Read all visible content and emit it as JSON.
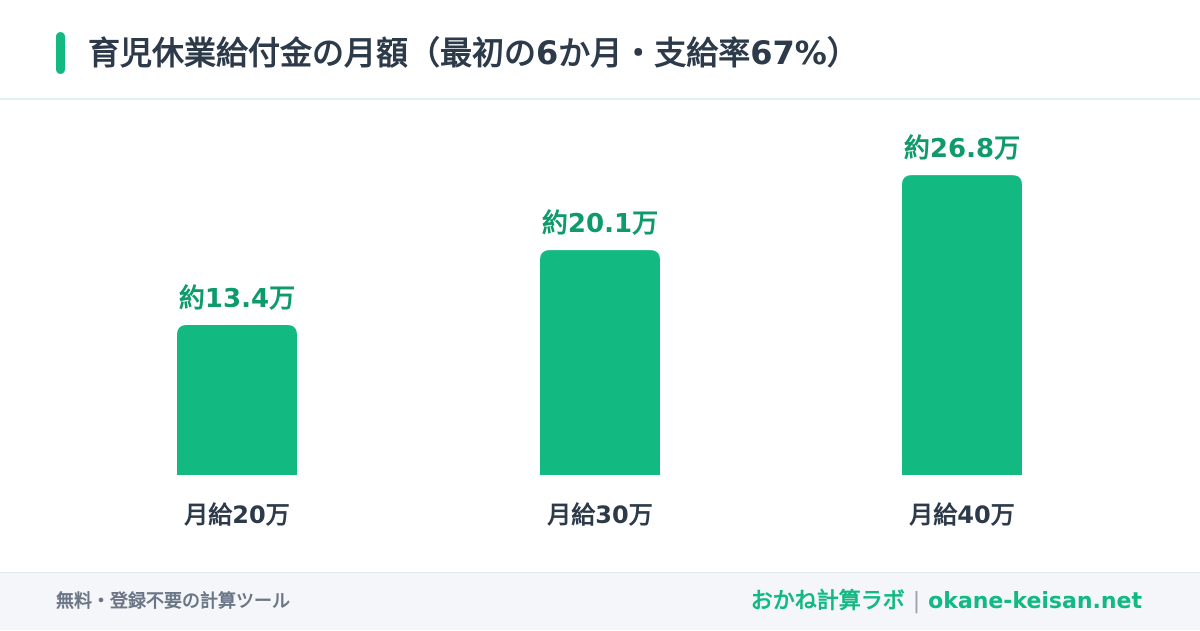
{
  "header": {
    "title": "育児休業給付金の月額（最初の6か月・支給率67%）",
    "accent_color": "#12b981"
  },
  "chart_data": {
    "type": "bar",
    "categories": [
      "月給20万",
      "月給30万",
      "月給40万"
    ],
    "values": [
      13.4,
      20.1,
      26.8
    ],
    "data_labels": [
      "約13.4万",
      "約20.1万",
      "約26.8万"
    ],
    "ylim": [
      0,
      30
    ],
    "grid": false,
    "bar_color": "#12b981",
    "label_color": "#0e9a6b"
  },
  "footer": {
    "tagline": "無料・登録不要の計算ツール",
    "brand": "おかね計算ラボ",
    "separator": "|",
    "domain": "okane-keisan.net"
  }
}
